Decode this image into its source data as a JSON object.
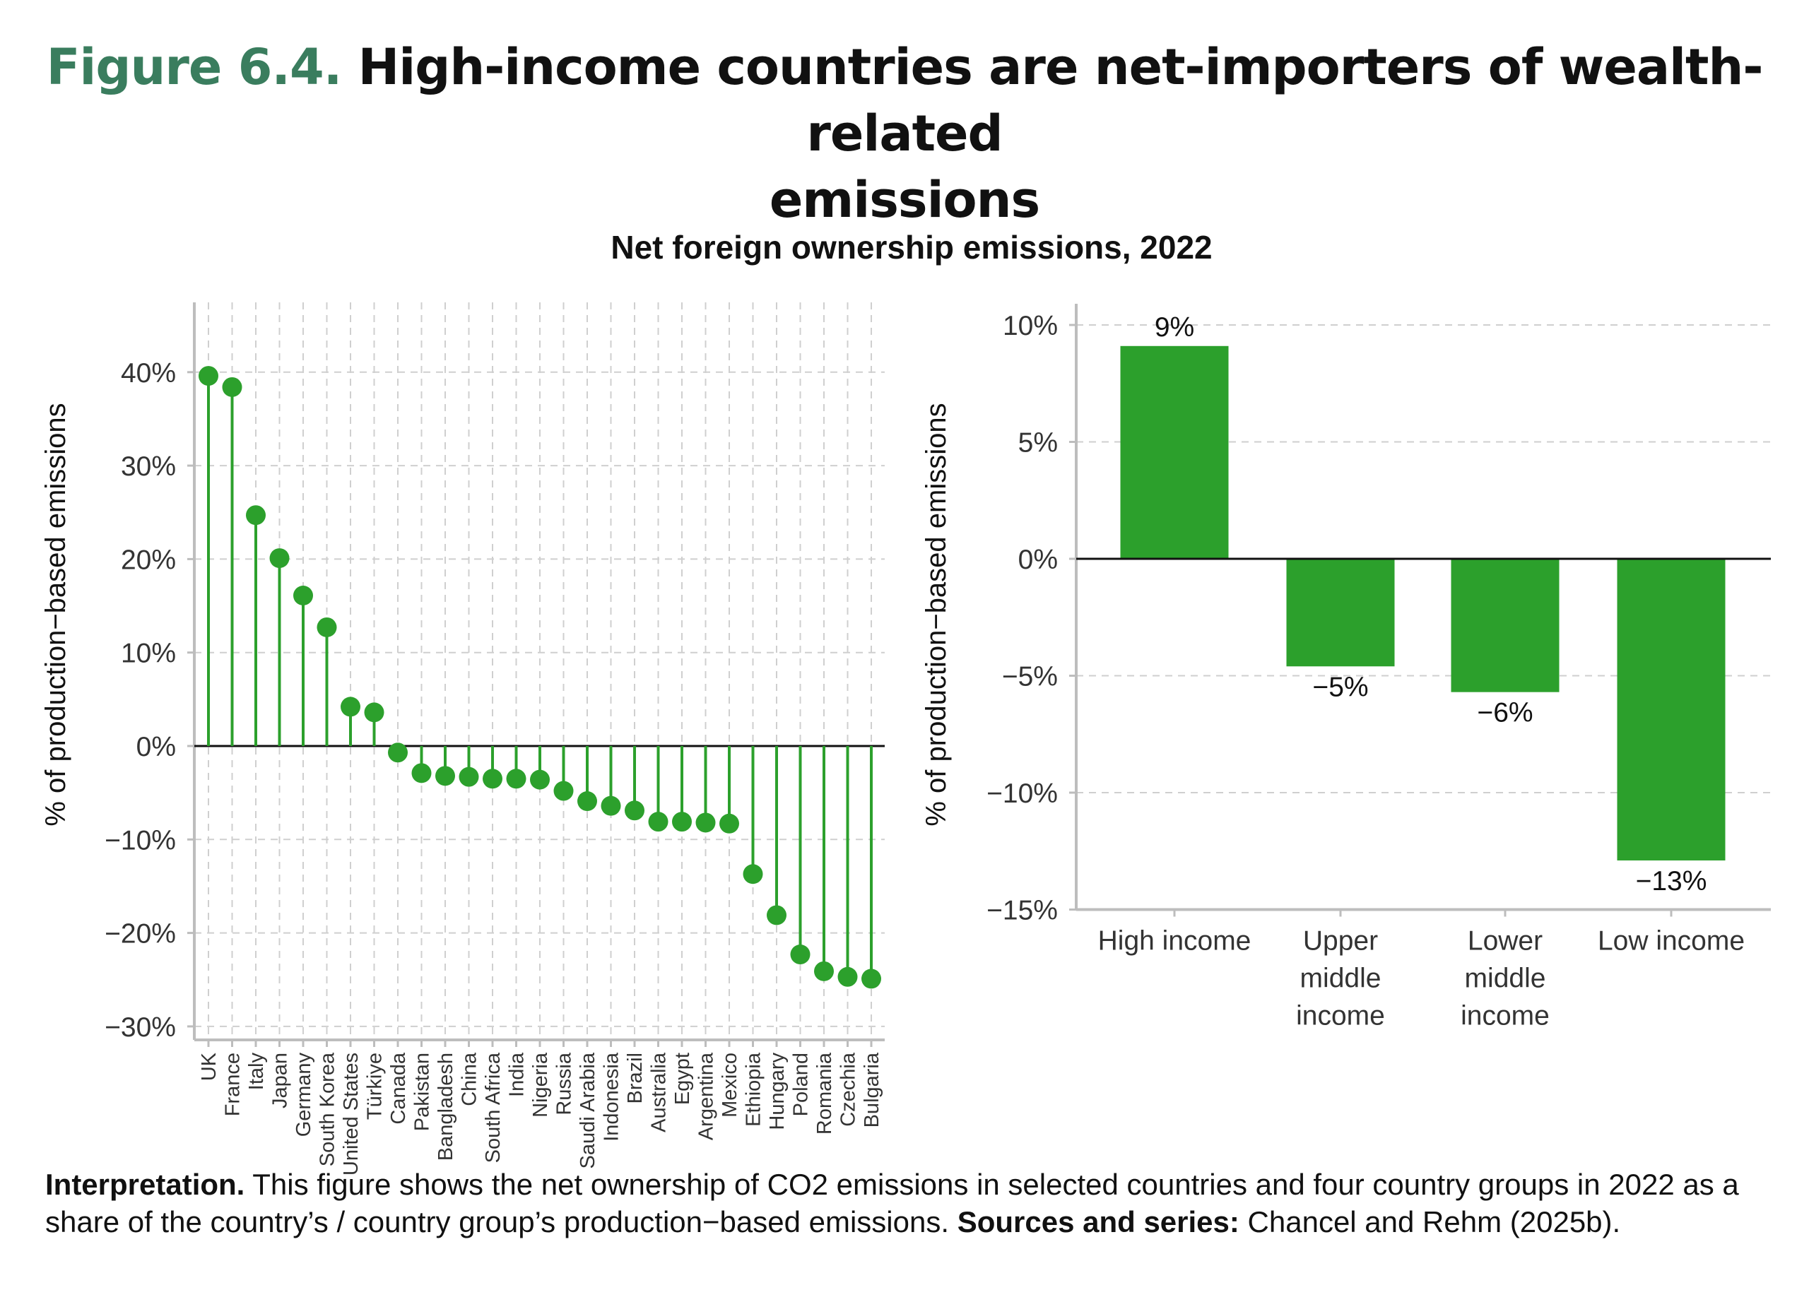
{
  "figure": {
    "number": "Figure 6.4.",
    "title_line1": "High-income countries are net-importers of wealth-related",
    "title_line2": "emissions"
  },
  "note": {
    "interpretation_label": "Interpretation.",
    "interpretation_text": " This figure shows the net ownership of CO2 emissions in selected countries and four country groups in 2022 as a share of the country’s / country group’s production−based emissions. ",
    "sources_label": "Sources and series:",
    "sources_text": " Chancel and Rehm (2025b)."
  },
  "colors": {
    "series": "#2ca02c",
    "title_accent": "#3a7d5e"
  },
  "chart_data": [
    {
      "type": "lollipop",
      "title": "Net foreign ownership emissions, 2022",
      "ylabel": "% of production−based emissions",
      "ylim": [
        -30,
        45
      ],
      "yticks": [
        -30,
        -20,
        -10,
        0,
        10,
        20,
        30,
        40
      ],
      "ytick_labels": [
        "−30%",
        "−20%",
        "−10%",
        "0%",
        "10%",
        "20%",
        "30%",
        "40%"
      ],
      "grid": true,
      "categories": [
        "UK",
        "France",
        "Italy",
        "Japan",
        "Germany",
        "South Korea",
        "United States",
        "Türkiye",
        "Canada",
        "Pakistan",
        "Bangladesh",
        "China",
        "South Africa",
        "India",
        "Nigeria",
        "Russia",
        "Saudi Arabia",
        "Indonesia",
        "Brazil",
        "Australia",
        "Egypt",
        "Argentina",
        "Mexico",
        "Ethiopia",
        "Hungary",
        "Poland",
        "Romania",
        "Czechia",
        "Bulgaria"
      ],
      "values": [
        39.6,
        38.4,
        24.7,
        20.1,
        16.1,
        12.7,
        4.2,
        3.6,
        -0.7,
        -2.9,
        -3.2,
        -3.3,
        -3.5,
        -3.5,
        -3.6,
        -4.8,
        -5.9,
        -6.4,
        -6.9,
        -8.1,
        -8.1,
        -8.2,
        -8.3,
        -13.7,
        -18.1,
        -22.3,
        -24.1,
        -24.7,
        -24.9
      ]
    },
    {
      "type": "bar",
      "ylabel": "% of production−based emissions",
      "ylim": [
        -15,
        10
      ],
      "yticks": [
        -15,
        -10,
        -5,
        0,
        5,
        10
      ],
      "ytick_labels": [
        "−15%",
        "−10%",
        "−5%",
        "0%",
        "5%",
        "10%"
      ],
      "grid": true,
      "categories": [
        [
          "High income"
        ],
        [
          "Upper",
          "middle",
          "income"
        ],
        [
          "Lower",
          "middle",
          "income"
        ],
        [
          "Low income"
        ]
      ],
      "values": [
        9.1,
        -4.6,
        -5.7,
        -12.9
      ],
      "data_labels": [
        "9%",
        "−5%",
        "−6%",
        "−13%"
      ]
    }
  ]
}
